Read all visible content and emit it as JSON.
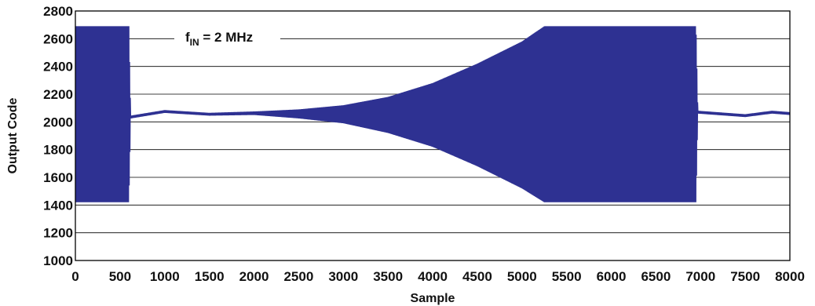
{
  "chart_data": {
    "type": "line",
    "title": "",
    "xlabel": "Sample",
    "ylabel": "Output Code",
    "xlim": [
      0,
      8000
    ],
    "ylim": [
      1000,
      2800
    ],
    "x_ticks": [
      0,
      500,
      1000,
      1500,
      2000,
      2500,
      3000,
      3500,
      4000,
      4500,
      5000,
      5500,
      6000,
      6500,
      7000,
      7500,
      8000
    ],
    "y_ticks": [
      1000,
      1200,
      1400,
      1600,
      1800,
      2000,
      2200,
      2400,
      2600,
      2800
    ],
    "grid": "horizontal",
    "annotation": {
      "main": "f",
      "sub": "IN",
      "rest": " = 2 MHz"
    },
    "series": [
      {
        "color": "#2e3192",
        "envelope": [
          {
            "x": 0,
            "min": 1420,
            "max": 2690
          },
          {
            "x": 600,
            "min": 1420,
            "max": 2690
          },
          {
            "x": 620,
            "min": 2025,
            "max": 2045
          },
          {
            "x": 1000,
            "min": 2065,
            "max": 2085
          },
          {
            "x": 1500,
            "min": 2045,
            "max": 2065
          },
          {
            "x": 2000,
            "min": 2050,
            "max": 2075
          },
          {
            "x": 2500,
            "min": 2025,
            "max": 2090
          },
          {
            "x": 3000,
            "min": 1990,
            "max": 2120
          },
          {
            "x": 3500,
            "min": 1920,
            "max": 2180
          },
          {
            "x": 4000,
            "min": 1820,
            "max": 2280
          },
          {
            "x": 4500,
            "min": 1680,
            "max": 2420
          },
          {
            "x": 5000,
            "min": 1520,
            "max": 2580
          },
          {
            "x": 5250,
            "min": 1420,
            "max": 2690
          },
          {
            "x": 6950,
            "min": 1420,
            "max": 2690
          },
          {
            "x": 6970,
            "min": 2060,
            "max": 2080
          },
          {
            "x": 7500,
            "min": 2035,
            "max": 2055
          },
          {
            "x": 7800,
            "min": 2060,
            "max": 2080
          },
          {
            "x": 8000,
            "min": 2050,
            "max": 2070
          }
        ]
      }
    ]
  }
}
